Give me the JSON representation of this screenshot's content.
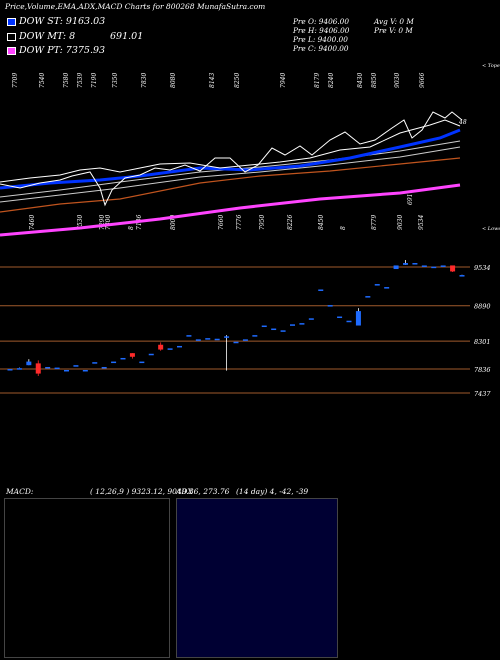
{
  "header": {
    "title": "Price,Volume,EMA,ADX,MACD Charts for 800268  MunafaSutra.com"
  },
  "legend": [
    {
      "label": "DOW ST: 9163.03",
      "color": "#0033ff"
    },
    {
      "label": "DOW MT: 8",
      "value": "691.01",
      "color": "#000000"
    },
    {
      "label": "DOW PT: 7375.93",
      "color": "#ff44ff"
    }
  ],
  "info": {
    "col1": [
      "Pre  O: 9406.00",
      "Pre  H: 9406.00",
      "Pre  L: 9400.00",
      "Pre  C: 9400.00"
    ],
    "col2": [
      "Avg V: 0  M",
      "Pre  V: 0  M"
    ]
  },
  "top_labels": [
    "7709",
    "7540",
    "7580",
    "7539",
    "7190",
    "7350",
    "7830",
    "8080",
    "8143",
    "8250",
    "7940",
    "8179",
    "8240",
    "8430",
    "8850",
    "9030",
    "9666"
  ],
  "mid_labels": [
    "7460",
    "7530",
    "7290",
    "7300",
    "8",
    "7186",
    "8000",
    "7660",
    "7776",
    "7950",
    "8226",
    "8450",
    "8",
    "8779",
    "9030",
    "9534",
    "691"
  ],
  "chart_data": {
    "type": "candlestick",
    "title": "Price,Volume,EMA,ADX,MACD Charts for 800268  MunafaSutra.com",
    "ylim": [
      7000,
      10200
    ],
    "price_axis_ticks": [
      9534,
      8890,
      8301,
      7836,
      7437
    ],
    "price_axis_labels": [
      "9534",
      "8890",
      "8301",
      "7836",
      "7437"
    ],
    "candles": [
      {
        "o": 7836,
        "h": 7836,
        "l": 7836,
        "c": 7836
      },
      {
        "o": 7850,
        "h": 7860,
        "l": 7850,
        "c": 7850
      },
      {
        "o": 7900,
        "h": 8000,
        "l": 7900,
        "c": 7960
      },
      {
        "o": 7930,
        "h": 7980,
        "l": 7720,
        "c": 7760
      },
      {
        "o": 7870,
        "h": 7870,
        "l": 7870,
        "c": 7870
      },
      {
        "o": 7860,
        "h": 7860,
        "l": 7860,
        "c": 7860
      },
      {
        "o": 7820,
        "h": 7820,
        "l": 7820,
        "c": 7820
      },
      {
        "o": 7900,
        "h": 7900,
        "l": 7900,
        "c": 7900
      },
      {
        "o": 7820,
        "h": 7820,
        "l": 7820,
        "c": 7820
      },
      {
        "o": 7950,
        "h": 7950,
        "l": 7950,
        "c": 7950
      },
      {
        "o": 7870,
        "h": 7870,
        "l": 7870,
        "c": 7870
      },
      {
        "o": 7960,
        "h": 7960,
        "l": 7960,
        "c": 7960
      },
      {
        "o": 8020,
        "h": 8020,
        "l": 8020,
        "c": 8020
      },
      {
        "o": 8100,
        "h": 8100,
        "l": 8010,
        "c": 8040
      },
      {
        "o": 7960,
        "h": 7960,
        "l": 7960,
        "c": 7960
      },
      {
        "o": 8090,
        "h": 8090,
        "l": 8090,
        "c": 8090
      },
      {
        "o": 8240,
        "h": 8280,
        "l": 8140,
        "c": 8160
      },
      {
        "o": 8180,
        "h": 8180,
        "l": 8180,
        "c": 8180
      },
      {
        "o": 8220,
        "h": 8220,
        "l": 8220,
        "c": 8220
      },
      {
        "o": 8400,
        "h": 8400,
        "l": 8400,
        "c": 8400
      },
      {
        "o": 8330,
        "h": 8330,
        "l": 8330,
        "c": 8330
      },
      {
        "o": 8350,
        "h": 8350,
        "l": 8350,
        "c": 8350
      },
      {
        "o": 8340,
        "h": 8340,
        "l": 8340,
        "c": 8340
      },
      {
        "o": 8380,
        "h": 8400,
        "l": 7810,
        "c": 8380
      },
      {
        "o": 8290,
        "h": 8290,
        "l": 8290,
        "c": 8290
      },
      {
        "o": 8330,
        "h": 8330,
        "l": 8330,
        "c": 8330
      },
      {
        "o": 8400,
        "h": 8400,
        "l": 8400,
        "c": 8400
      },
      {
        "o": 8560,
        "h": 8560,
        "l": 8560,
        "c": 8560
      },
      {
        "o": 8510,
        "h": 8510,
        "l": 8510,
        "c": 8510
      },
      {
        "o": 8480,
        "h": 8480,
        "l": 8480,
        "c": 8480
      },
      {
        "o": 8580,
        "h": 8580,
        "l": 8580,
        "c": 8580
      },
      {
        "o": 8600,
        "h": 8600,
        "l": 8600,
        "c": 8600
      },
      {
        "o": 8680,
        "h": 8680,
        "l": 8680,
        "c": 8680
      },
      {
        "o": 9160,
        "h": 9160,
        "l": 9160,
        "c": 9160
      },
      {
        "o": 8900,
        "h": 8900,
        "l": 8900,
        "c": 8900
      },
      {
        "o": 8710,
        "h": 8710,
        "l": 8710,
        "c": 8710
      },
      {
        "o": 8640,
        "h": 8640,
        "l": 8640,
        "c": 8640
      },
      {
        "o": 8560,
        "h": 8850,
        "l": 8560,
        "c": 8800
      },
      {
        "o": 9050,
        "h": 9050,
        "l": 9050,
        "c": 9050
      },
      {
        "o": 9250,
        "h": 9250,
        "l": 9250,
        "c": 9250
      },
      {
        "o": 9200,
        "h": 9200,
        "l": 9200,
        "c": 9200
      },
      {
        "o": 9500,
        "h": 9560,
        "l": 9500,
        "c": 9560
      },
      {
        "o": 9570,
        "h": 9650,
        "l": 9570,
        "c": 9600
      },
      {
        "o": 9600,
        "h": 9600,
        "l": 9600,
        "c": 9600
      },
      {
        "o": 9560,
        "h": 9560,
        "l": 9560,
        "c": 9560
      },
      {
        "o": 9540,
        "h": 9540,
        "l": 9540,
        "c": 9540
      },
      {
        "o": 9560,
        "h": 9560,
        "l": 9560,
        "c": 9560
      },
      {
        "o": 9560,
        "h": 9560,
        "l": 9450,
        "c": 9460
      },
      {
        "o": 9400,
        "h": 9406,
        "l": 9400,
        "c": 9400
      }
    ],
    "panels": [
      {
        "name": "MACD",
        "label": "MACD:",
        "params": "( 12,26,9 ) 9323.12,  9049.36,  273.76"
      },
      {
        "name": "ADX",
        "label": "ADX",
        "params": "(14  day) 4,  -42,  -39"
      }
    ]
  },
  "colors": {
    "up": "#1e6bff",
    "down": "#ff2a2a",
    "ema_short": "#0033ff",
    "ema_pt": "#ff44ff",
    "grid": "#a05a2c",
    "macd_fill": "#00ff00"
  }
}
